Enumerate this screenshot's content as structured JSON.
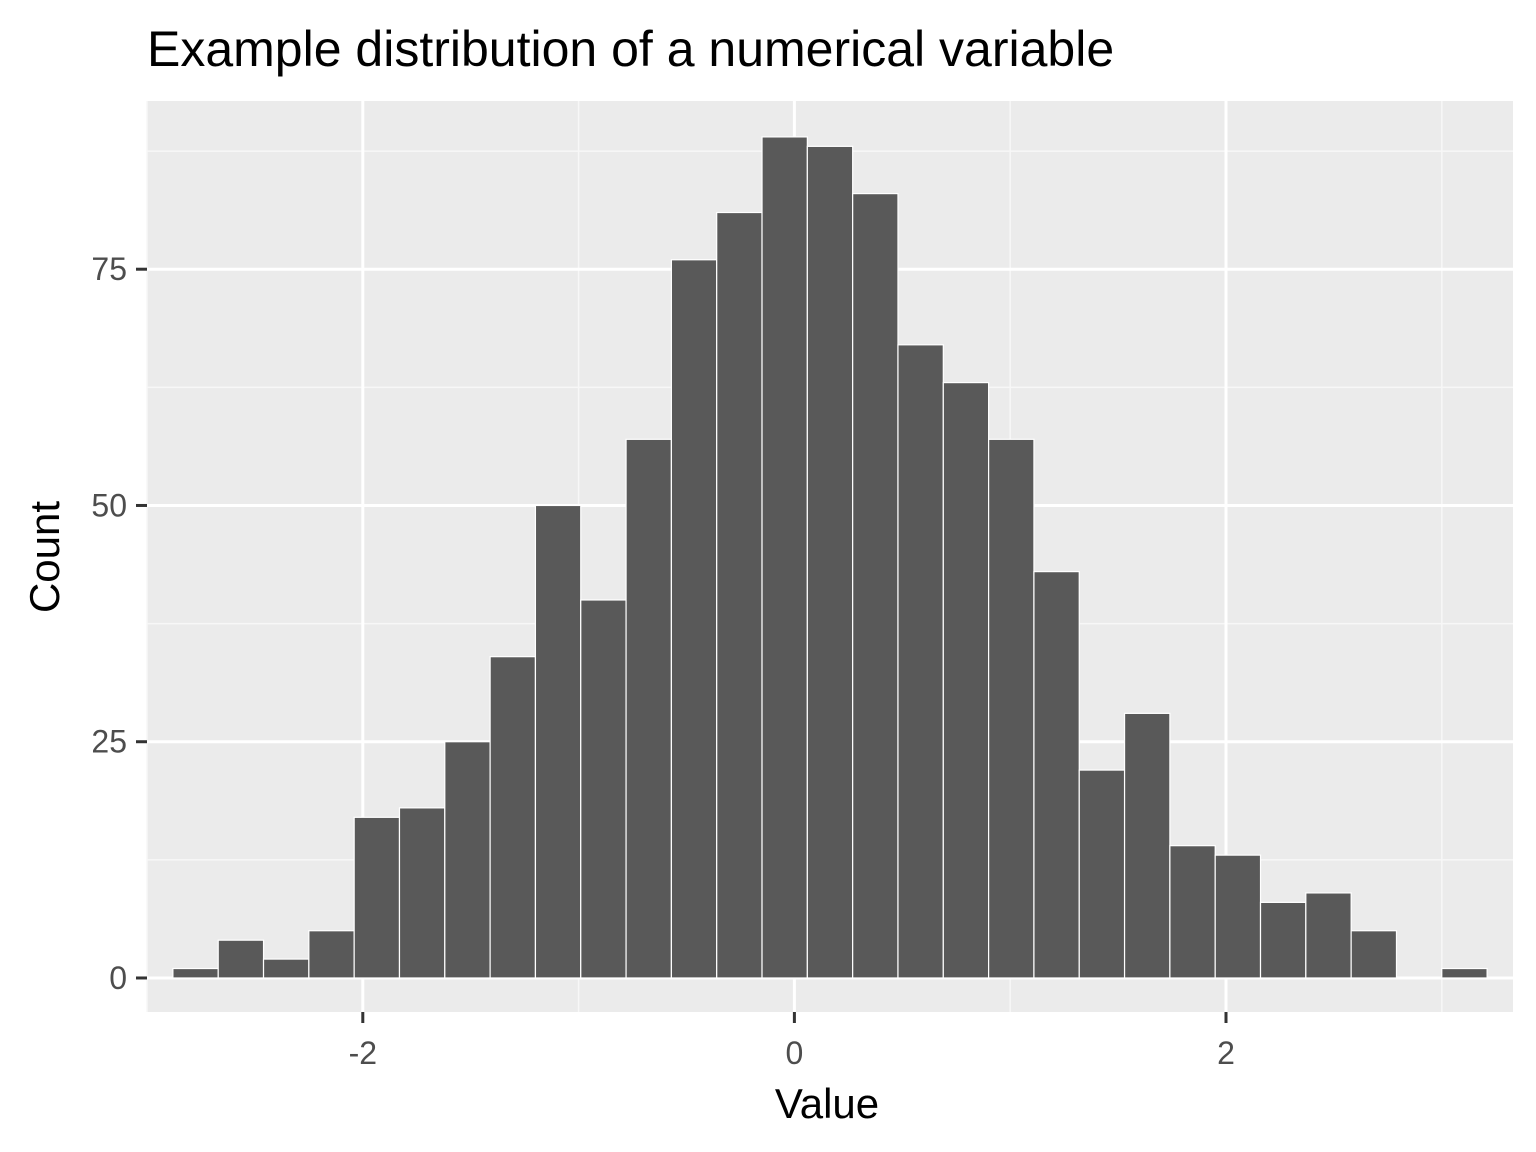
{
  "chart_data": {
    "type": "bar",
    "subtype": "histogram",
    "title": "Example distribution of a numerical variable",
    "xlabel": "Value",
    "ylabel": "Count",
    "xlim": [
      -3.0,
      3.33
    ],
    "ylim": [
      -3.6,
      92.8
    ],
    "x_ticks": [
      -2,
      0,
      2
    ],
    "x_tick_labels": [
      "-2",
      "0",
      "2"
    ],
    "y_ticks": [
      0,
      25,
      50,
      75
    ],
    "y_tick_labels": [
      "0",
      "25",
      "50",
      "75"
    ],
    "grid": true,
    "legend": "none",
    "bin_width": 0.21,
    "bins": [
      {
        "x0": -2.88,
        "x1": -2.67,
        "count": 1
      },
      {
        "x0": -2.67,
        "x1": -2.46,
        "count": 4
      },
      {
        "x0": -2.46,
        "x1": -2.25,
        "count": 2
      },
      {
        "x0": -2.25,
        "x1": -2.04,
        "count": 5
      },
      {
        "x0": -2.04,
        "x1": -1.83,
        "count": 17
      },
      {
        "x0": -1.83,
        "x1": -1.62,
        "count": 18
      },
      {
        "x0": -1.62,
        "x1": -1.41,
        "count": 25
      },
      {
        "x0": -1.41,
        "x1": -1.2,
        "count": 34
      },
      {
        "x0": -1.2,
        "x1": -0.99,
        "count": 50
      },
      {
        "x0": -0.99,
        "x1": -0.78,
        "count": 40
      },
      {
        "x0": -0.78,
        "x1": -0.57,
        "count": 57
      },
      {
        "x0": -0.57,
        "x1": -0.36,
        "count": 76
      },
      {
        "x0": -0.36,
        "x1": -0.15,
        "count": 81
      },
      {
        "x0": -0.15,
        "x1": 0.06,
        "count": 89
      },
      {
        "x0": 0.06,
        "x1": 0.27,
        "count": 88
      },
      {
        "x0": 0.27,
        "x1": 0.48,
        "count": 83
      },
      {
        "x0": 0.48,
        "x1": 0.69,
        "count": 67
      },
      {
        "x0": 0.69,
        "x1": 0.9,
        "count": 63
      },
      {
        "x0": 0.9,
        "x1": 1.11,
        "count": 57
      },
      {
        "x0": 1.11,
        "x1": 1.32,
        "count": 43
      },
      {
        "x0": 1.32,
        "x1": 1.53,
        "count": 22
      },
      {
        "x0": 1.53,
        "x1": 1.74,
        "count": 28
      },
      {
        "x0": 1.74,
        "x1": 1.95,
        "count": 14
      },
      {
        "x0": 1.95,
        "x1": 2.16,
        "count": 13
      },
      {
        "x0": 2.16,
        "x1": 2.37,
        "count": 8
      },
      {
        "x0": 2.37,
        "x1": 2.58,
        "count": 9
      },
      {
        "x0": 2.58,
        "x1": 2.79,
        "count": 5
      },
      {
        "x0": 2.79,
        "x1": 3.0,
        "count": 0
      },
      {
        "x0": 3.0,
        "x1": 3.21,
        "count": 1
      }
    ],
    "colors": {
      "bar_fill": "#595959",
      "bar_outline": "#ffffff",
      "panel_background": "#ebebeb",
      "grid_major": "#ffffff",
      "grid_minor": "#f7f7f7",
      "tick_mark": "#333333",
      "tick_label": "#4d4d4d"
    }
  }
}
